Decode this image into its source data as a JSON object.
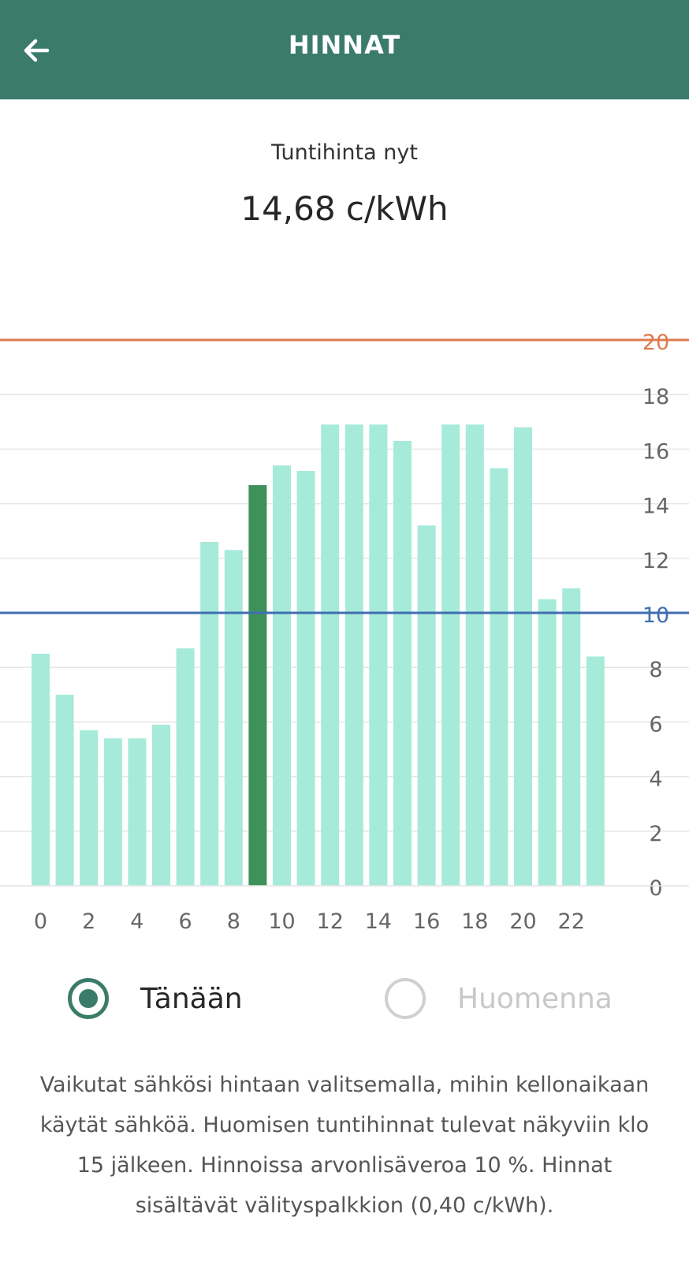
{
  "header": {
    "title": "HINNAT",
    "back_icon": "arrow-left-icon"
  },
  "current": {
    "label": "Tuntihinta nyt",
    "value": "14,68 c/kWh"
  },
  "colors": {
    "header_bg": "#3b7b6a",
    "bar": "#a6eada",
    "bar_current": "#3e9159",
    "upper_line": "#de7a4f",
    "lower_line": "#3f6fb0"
  },
  "chart_data": {
    "type": "bar",
    "categories": [
      "0",
      "1",
      "2",
      "3",
      "4",
      "5",
      "6",
      "7",
      "8",
      "9",
      "10",
      "11",
      "12",
      "13",
      "14",
      "15",
      "16",
      "17",
      "18",
      "19",
      "20",
      "21",
      "22",
      "23"
    ],
    "values": [
      8.5,
      7.0,
      5.7,
      5.4,
      5.4,
      5.9,
      8.7,
      12.6,
      12.3,
      14.68,
      15.4,
      15.2,
      16.9,
      16.9,
      16.9,
      16.3,
      13.2,
      16.9,
      16.9,
      15.3,
      16.8,
      10.5,
      10.9,
      8.4
    ],
    "highlight_index": 9,
    "x_tick_labels": [
      "0",
      "2",
      "4",
      "6",
      "8",
      "10",
      "12",
      "14",
      "16",
      "18",
      "20",
      "22"
    ],
    "y_ticks": [
      0,
      2,
      4,
      6,
      8,
      10,
      12,
      14,
      16,
      18,
      20
    ],
    "ylim": [
      0,
      20
    ],
    "reference_lines": [
      {
        "value": 20,
        "color": "#de7a4f"
      },
      {
        "value": 10,
        "color": "#3f6fb0"
      }
    ],
    "grid": true
  },
  "tabs": {
    "today_label": "Tänään",
    "tomorrow_label": "Huomenna",
    "selected": "today"
  },
  "info_text": "Vaikutat sähkösi hintaan valitsemalla, mihin kellonaikaan käytät sähköä. Huomisen tuntihinnat tulevat näkyviin klo 15 jälkeen. Hinnoissa arvonlisäveroa 10 %. Hinnat sisältävät välityspalkkion (0,40 c/kWh)."
}
